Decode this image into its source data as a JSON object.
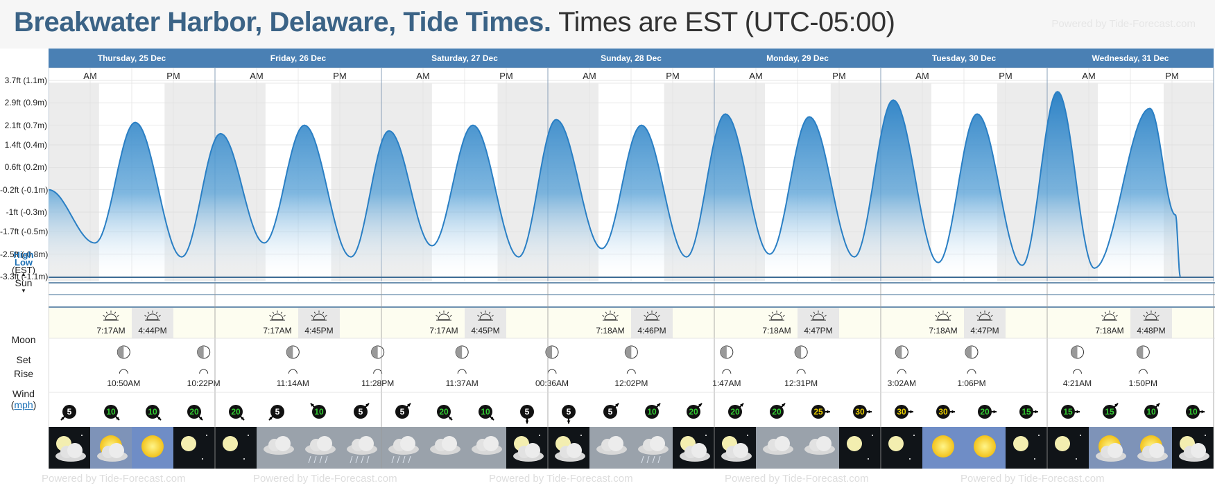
{
  "header": {
    "title": "Breakwater Harbor, Delaware, Tide Times.",
    "subtitle": "Times are EST (UTC-05:00)",
    "powered": "Powered by Tide-Forecast.com"
  },
  "colors": {
    "header_bar": "#4a80b4",
    "night_shade": "#ececec",
    "tide_fill_top": "#3c8ccb",
    "tide_line": "#2a7fc4",
    "sun_row_bg": "#fdfdf0",
    "wind_green": "#33cc33",
    "wind_yellow": "#e6cc00",
    "title": "#3b6386"
  },
  "days": [
    {
      "label": "Thursday, 25 Dec",
      "sunrise": "7:17AM",
      "sunset": "4:44PM",
      "moon_set": "10:50AM",
      "moon_rise": "10:22PM"
    },
    {
      "label": "Friday, 26 Dec",
      "sunrise": "7:17AM",
      "sunset": "4:45PM",
      "moon_set": "11:14AM",
      "moon_rise": "11:28PM"
    },
    {
      "label": "Saturday, 27 Dec",
      "sunrise": "7:17AM",
      "sunset": "4:45PM",
      "moon_set": "11:37AM",
      "moon_rise": ""
    },
    {
      "label": "Sunday, 28 Dec",
      "sunrise": "7:18AM",
      "sunset": "4:46PM",
      "moon_set": "12:02PM",
      "moon_rise": "00:36AM"
    },
    {
      "label": "Monday, 29 Dec",
      "sunrise": "7:18AM",
      "sunset": "4:47PM",
      "moon_set": "12:31PM",
      "moon_rise": "1:47AM"
    },
    {
      "label": "Tuesday, 30 Dec",
      "sunrise": "7:18AM",
      "sunset": "4:47PM",
      "moon_set": "1:06PM",
      "moon_rise": "3:02AM"
    },
    {
      "label": "Wednesday, 31 Dec",
      "sunrise": "7:18AM",
      "sunset": "4:48PM",
      "moon_set": "1:50PM",
      "moon_rise": "4:21AM"
    }
  ],
  "am_label": "AM",
  "pm_label": "PM",
  "row_labels": {
    "tide_high": "High",
    "tide_low": "Low",
    "tide_tz": "(EST)",
    "sun": "Sun",
    "moon": "Moon",
    "moon_set": "Set",
    "moon_rise": "Rise",
    "wind": "Wind",
    "wind_unit": "mph"
  },
  "wind": {
    "speeds": [
      5,
      10,
      10,
      20,
      20,
      5,
      10,
      5,
      5,
      20,
      10,
      5,
      5,
      5,
      10,
      20,
      20,
      20,
      25,
      30,
      30,
      30,
      20,
      15,
      15,
      15,
      10,
      10
    ],
    "directions": [
      "SW",
      "SE",
      "SE",
      "SE",
      "SE",
      "SW",
      "NW",
      "NE",
      "NE",
      "SE",
      "SE",
      "S",
      "S",
      "NE",
      "NE",
      "NE",
      "NE",
      "NE",
      "E",
      "E",
      "E",
      "E",
      "E",
      "E",
      "E",
      "NE",
      "NE",
      "E"
    ]
  },
  "weather": [
    "partly-cloudy-night",
    "sunny-cloudy",
    "sunny",
    "clear-night",
    "clear-night",
    "cloudy",
    "rain",
    "rain",
    "rain",
    "cloudy",
    "cloudy",
    "partly-cloudy-night",
    "partly-cloudy-night",
    "cloudy",
    "rain",
    "partly-cloudy-night",
    "partly-cloudy-night",
    "cloudy",
    "cloudy",
    "clear-night",
    "clear-night",
    "sunny",
    "sunny",
    "clear-night",
    "clear-night",
    "sunny-cloudy",
    "sunny-cloudy",
    "partly-cloudy-night"
  ],
  "chart_data": {
    "type": "area",
    "title": "Breakwater Harbor, Delaware, Tide Times.",
    "ylabel": "",
    "yticks": [
      "3.7ft (1.1m)",
      "2.9ft (0.9m)",
      "2.1ft (0.7m)",
      "1.4ft (0.4m)",
      "0.6ft (0.2m)",
      "-0.2ft (-0.1m)",
      "-1ft (-0.3m)",
      "-1.7ft (-0.5m)",
      "-2.5ft (-0.8m)",
      "-3.3ft (-1.1m)"
    ],
    "ytick_values": [
      3.7,
      2.9,
      2.1,
      1.4,
      0.6,
      -0.2,
      -1.0,
      -1.7,
      -2.5,
      -3.3
    ],
    "ylim": [
      -3.3,
      3.7
    ],
    "x_unit": "hours from Thursday 25 Dec 00:00",
    "xlim": [
      0,
      168
    ],
    "series": [
      {
        "x": [
          0,
          6.7,
          12.5,
          19.2,
          24.8,
          31.1,
          36.9,
          43.6,
          49.1,
          55.3,
          61.2,
          67.8,
          73.2,
          79.8,
          85.5,
          92.0,
          97.6,
          104.0,
          109.7,
          116.2,
          121.8,
          128.3,
          133.9,
          140.4,
          145.5,
          150.8,
          158.8,
          162.5,
          163.2
        ],
        "y": [
          -0.2,
          -2.1,
          2.2,
          -2.6,
          1.8,
          -2.1,
          2.1,
          -2.6,
          1.9,
          -2.2,
          2.1,
          -2.6,
          2.3,
          -2.3,
          2.1,
          -2.6,
          2.5,
          -2.5,
          2.4,
          -2.6,
          3.0,
          -2.8,
          2.5,
          -2.9,
          3.3,
          -3.0,
          2.7,
          -1.1,
          -3.3
        ]
      }
    ],
    "grid": true
  }
}
